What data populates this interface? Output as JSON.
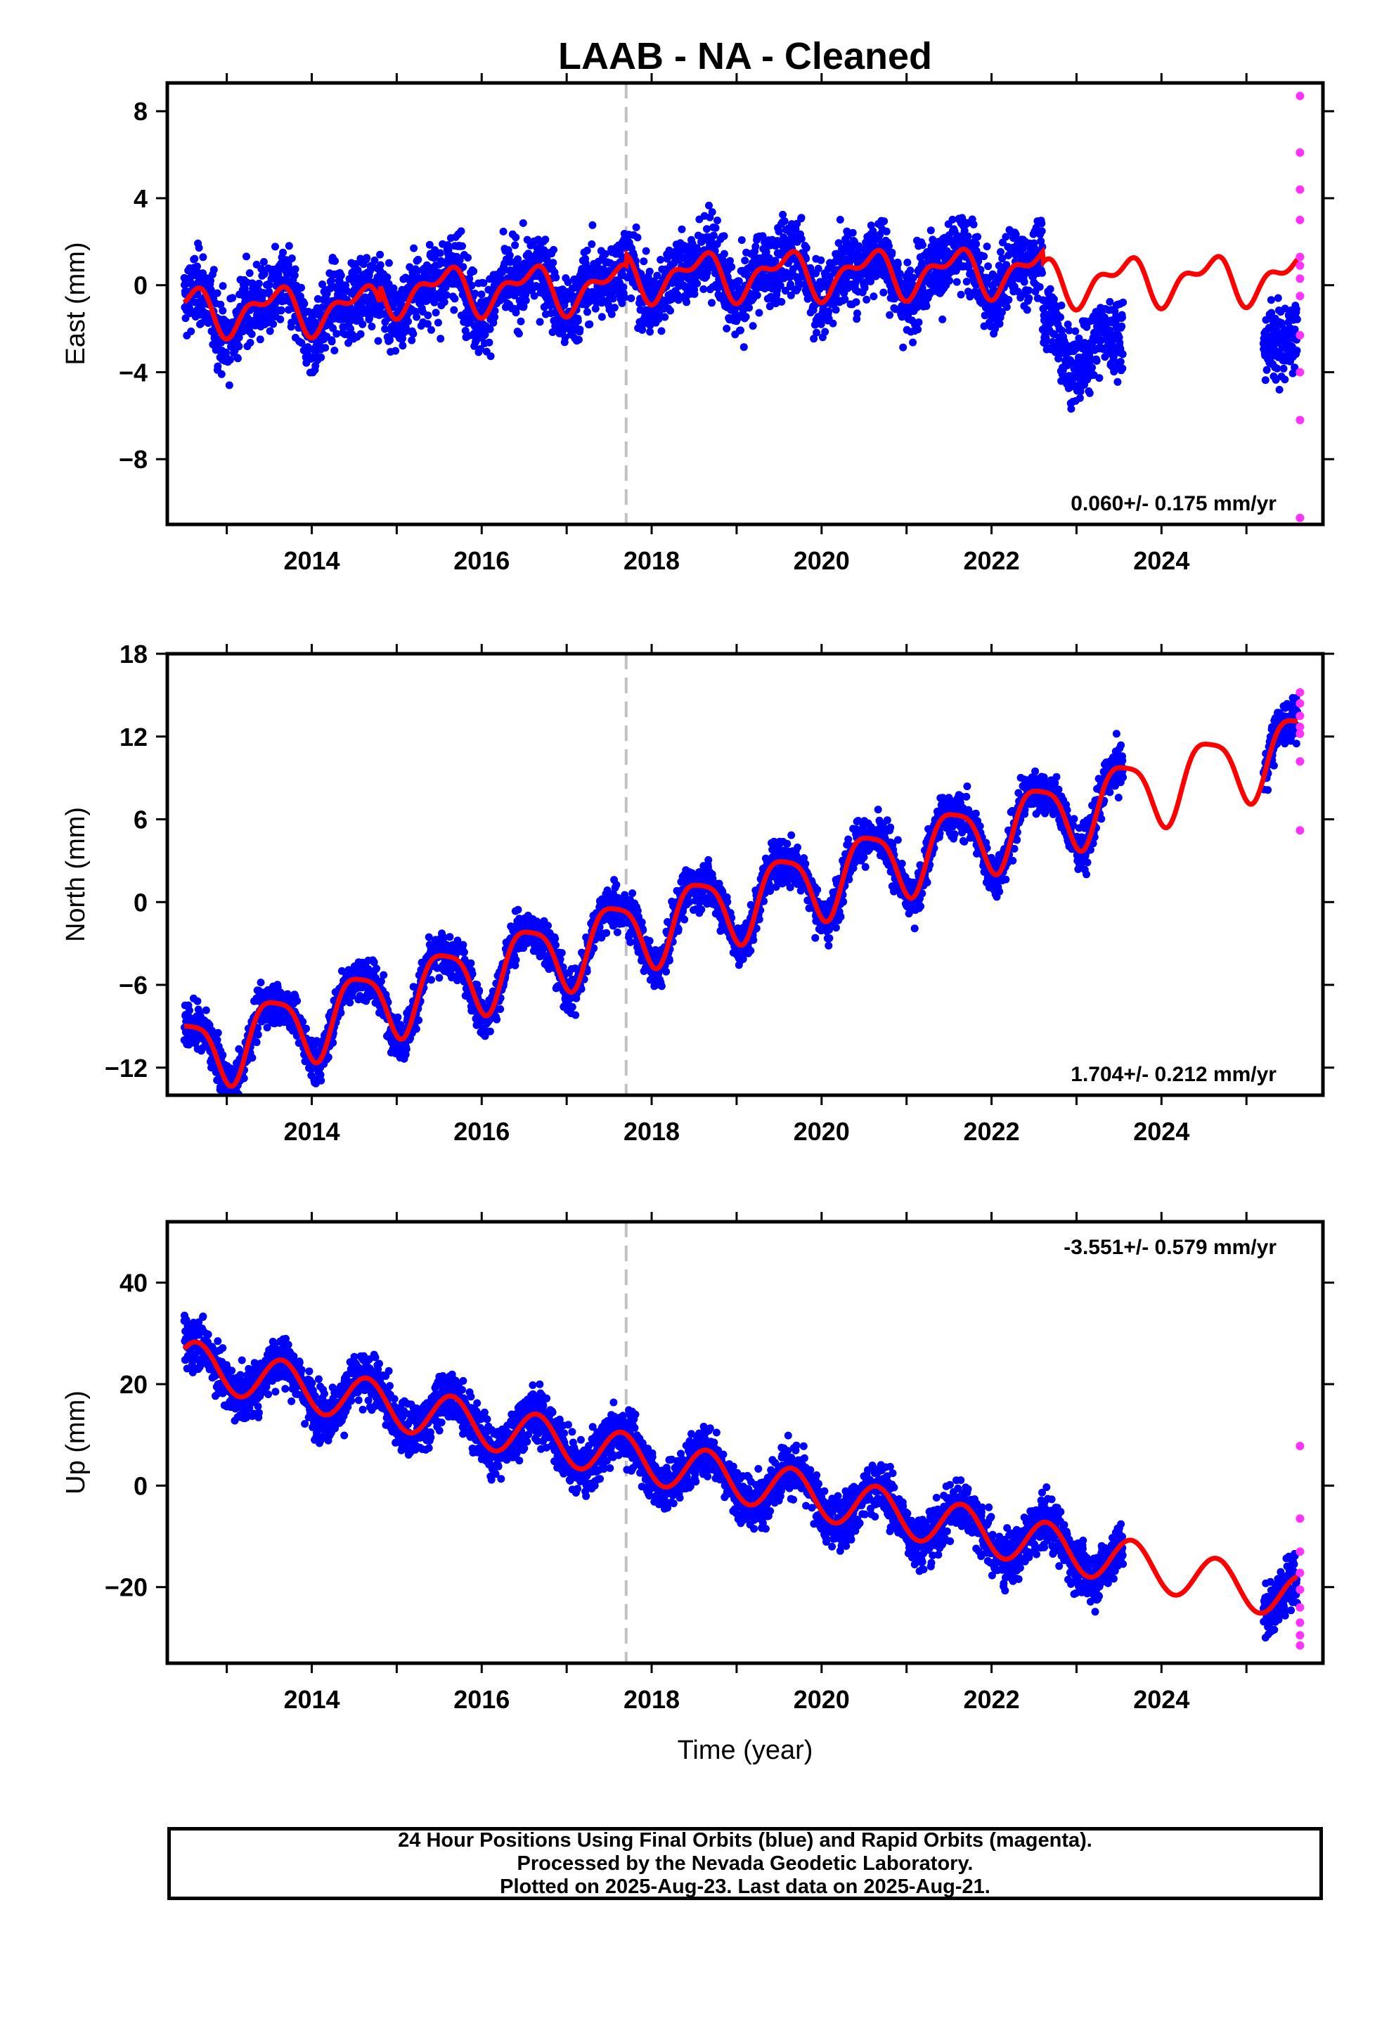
{
  "title": "LAAB  - NA - Cleaned",
  "colors": {
    "final_orbits": "#0000ff",
    "rapid_orbits": "#ff33ff",
    "model": "#ff0000",
    "event_line": "#c0c0c0"
  },
  "chart_data": [
    {
      "type": "scatter",
      "component": "East",
      "ylabel": "East (mm)",
      "xlabel": "",
      "xlim": [
        2012.3,
        2025.9
      ],
      "ylim": [
        -11.0,
        9.3
      ],
      "yticks": [
        -8,
        -4,
        0,
        4,
        8
      ],
      "xticks": [
        2014,
        2016,
        2018,
        2020,
        2022,
        2024
      ],
      "rate_label": "0.060+/- 0.175 mm/yr",
      "rate_position": "bottom-right",
      "event_line_x": 2017.7,
      "series": [
        {
          "name": "",
          "kind": "final_orbits_points",
          "segments": [
            [
              2012.5,
              2023.55
            ],
            [
              2025.2,
              2025.6
            ]
          ]
        },
        {
          "name": "",
          "kind": "rapid_orbits_points",
          "x": [
            2025.63,
            2025.63,
            2025.63,
            2025.63,
            2025.63,
            2025.63,
            2025.63,
            2025.63,
            2025.63,
            2025.63,
            2025.63,
            2025.63
          ],
          "y": [
            8.7,
            6.1,
            4.4,
            3.0,
            1.3,
            0.3,
            -0.5,
            -2.3,
            -4.0,
            -6.2,
            -10.7,
            0.9
          ]
        },
        {
          "name": "",
          "kind": "model_curve",
          "x_range": [
            2012.5,
            2025.6
          ]
        }
      ]
    },
    {
      "type": "scatter",
      "component": "North",
      "ylabel": "North (mm)",
      "xlabel": "",
      "xlim": [
        2012.3,
        2025.9
      ],
      "ylim": [
        -14.0,
        18.0
      ],
      "yticks": [
        -12,
        -6,
        0,
        6,
        12,
        18
      ],
      "xticks": [
        2014,
        2016,
        2018,
        2020,
        2022,
        2024
      ],
      "rate_label": "1.704+/- 0.212 mm/yr",
      "rate_position": "bottom-right",
      "event_line_x": 2017.7,
      "series": [
        {
          "name": "",
          "kind": "final_orbits_points",
          "segments": [
            [
              2012.5,
              2023.55
            ],
            [
              2025.2,
              2025.6
            ]
          ]
        },
        {
          "name": "",
          "kind": "rapid_orbits_points",
          "x": [
            2025.63,
            2025.63,
            2025.63,
            2025.63,
            2025.63,
            2025.63,
            2025.63
          ],
          "y": [
            15.2,
            14.4,
            13.5,
            12.7,
            12.2,
            10.2,
            5.2
          ]
        },
        {
          "name": "",
          "kind": "model_curve",
          "x_range": [
            2012.5,
            2025.6
          ]
        }
      ]
    },
    {
      "type": "scatter",
      "component": "Up",
      "ylabel": "Up (mm)",
      "xlabel": "Time (year)",
      "xlim": [
        2012.3,
        2025.9
      ],
      "ylim": [
        -35.0,
        52.0
      ],
      "yticks": [
        -20,
        0,
        20,
        40
      ],
      "xticks": [
        2014,
        2016,
        2018,
        2020,
        2022,
        2024
      ],
      "rate_label": "-3.551+/- 0.579 mm/yr",
      "rate_position": "top-right",
      "event_line_x": 2017.7,
      "series": [
        {
          "name": "",
          "kind": "final_orbits_points",
          "segments": [
            [
              2012.5,
              2023.55
            ],
            [
              2025.2,
              2025.6
            ]
          ]
        },
        {
          "name": "",
          "kind": "rapid_orbits_points",
          "x": [
            2025.63,
            2025.63,
            2025.63,
            2025.63,
            2025.63,
            2025.63,
            2025.63,
            2025.63,
            2025.63
          ],
          "y": [
            7.8,
            -6.5,
            -13.0,
            -17.2,
            -20.5,
            -24.0,
            -27.0,
            -29.5,
            -31.5
          ]
        },
        {
          "name": "",
          "kind": "model_curve",
          "x_range": [
            2012.5,
            2025.6
          ]
        }
      ]
    }
  ],
  "footer": {
    "line1": "24 Hour Positions Using Final Orbits (blue) and Rapid Orbits (magenta).",
    "line2": "Processed by the Nevada Geodetic Laboratory.",
    "line3": "Plotted on 2025-Aug-23. Last data on 2025-Aug-21."
  }
}
